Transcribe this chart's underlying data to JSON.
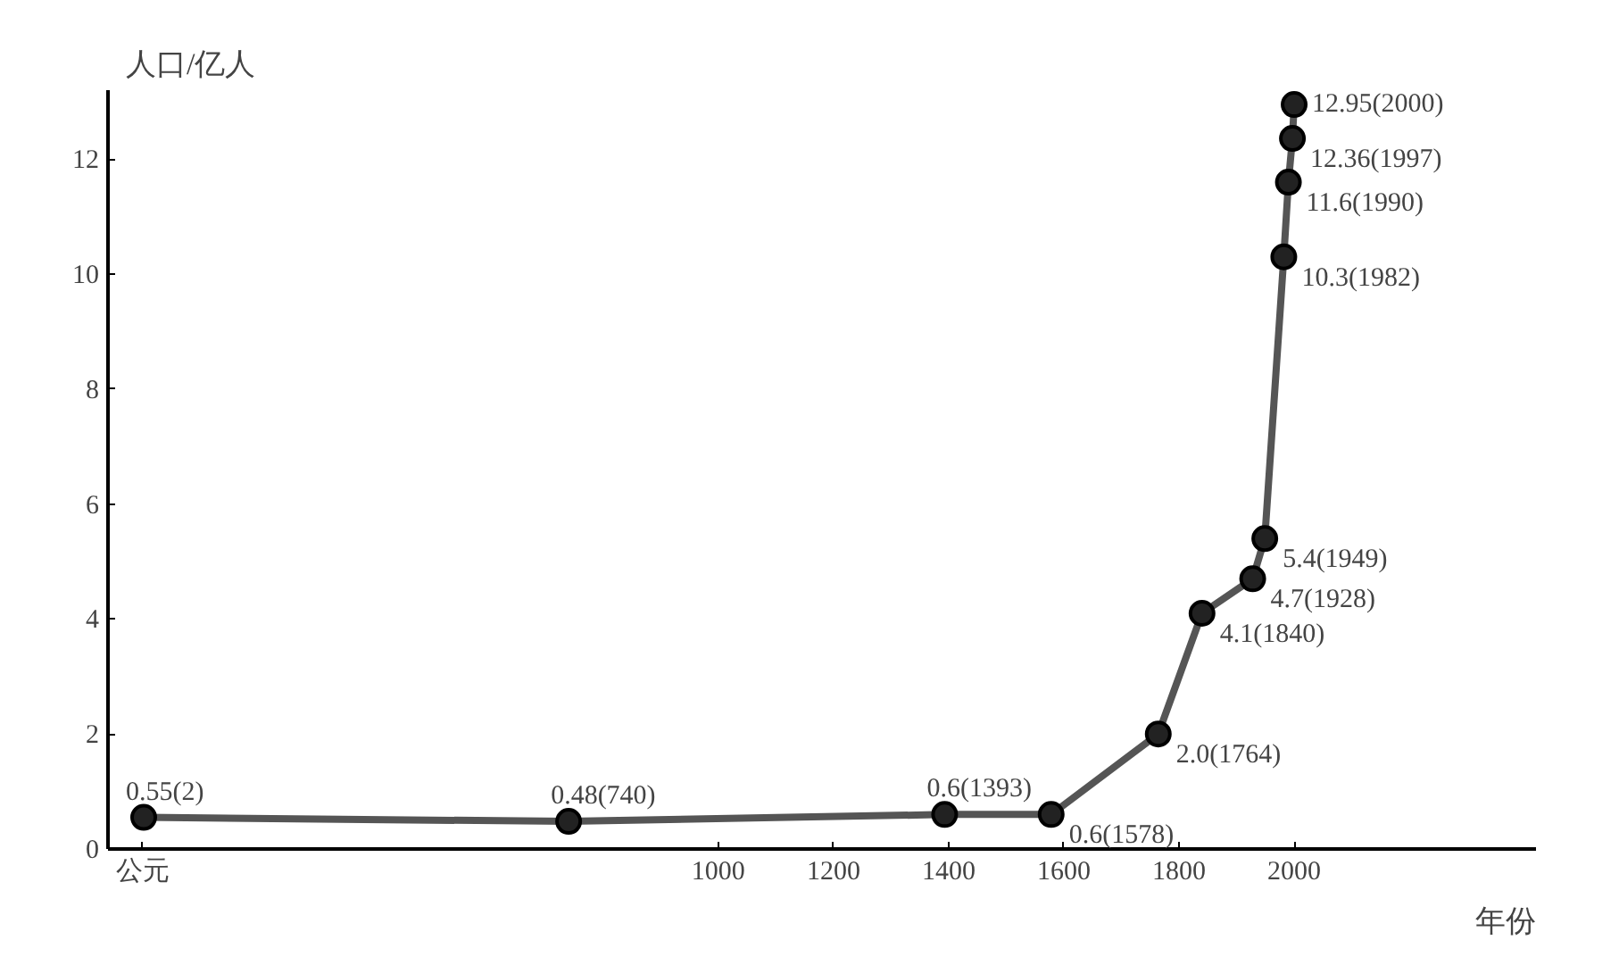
{
  "chart_data": {
    "type": "line",
    "xlabel": "年份",
    "ylabel": "人口/亿人",
    "x": [
      2,
      740,
      1393,
      1578,
      1764,
      1840,
      1928,
      1949,
      1982,
      1990,
      1997,
      2000
    ],
    "values": [
      0.55,
      0.48,
      0.6,
      0.6,
      2.0,
      4.1,
      4.7,
      5.4,
      10.3,
      11.6,
      12.36,
      12.95
    ],
    "value_labels": [
      "0.55(2)",
      "0.48(740)",
      "0.6(1393)",
      "0.6(1578)",
      "2.0(1764)",
      "4.1(1840)",
      "4.7(1928)",
      "5.4(1949)",
      "10.3(1982)",
      "11.6(1990)",
      "12.36(1997)",
      "12.95(2000)"
    ],
    "color": "#555555",
    "marker": "circle",
    "grid": false,
    "xlim": [
      -60,
      2420
    ],
    "xticks": [
      {
        "value": 0,
        "label": "公元"
      },
      1000,
      1200,
      1400,
      1600,
      1800,
      2000
    ],
    "ylim": [
      0,
      13.2
    ],
    "yticks": [
      0,
      2,
      4,
      6,
      8,
      10,
      12
    ]
  }
}
